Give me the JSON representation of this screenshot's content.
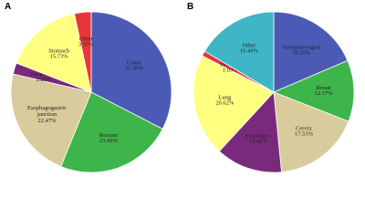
{
  "chart_data": [
    {
      "type": "pie",
      "title": "A",
      "categories": [
        "Colon",
        "Rectum",
        "Esophagogastric junction",
        "Esophagus",
        "Stomach",
        "Other"
      ],
      "values": [
        32.58,
        23.6,
        22.47,
        2.25,
        15.73,
        3.37
      ],
      "value_labels": [
        "32.58%",
        "23.60%",
        "22.47%",
        "2.25%",
        "15.73%",
        "3.37%"
      ],
      "colors": [
        "#4b5bb5",
        "#3db54a",
        "#d8cb9c",
        "#7a2a7c",
        "#ffff80",
        "#e8353b"
      ]
    },
    {
      "type": "pie",
      "title": "B",
      "categories": [
        "Nasopharyngeal",
        "Breast",
        "Cervix",
        "Esophagus",
        "Lung",
        "Stomach",
        "Other"
      ],
      "values": [
        18.56,
        12.37,
        17.53,
        13.4,
        20.62,
        1.03,
        16.49
      ],
      "value_labels": [
        "18.56%",
        "12.37%",
        "17.53%",
        "13.40%",
        "20.62%",
        "1.03%",
        "16.49%"
      ],
      "colors": [
        "#4b5bb5",
        "#3db54a",
        "#d8cb9c",
        "#7a2a7c",
        "#ffff80",
        "#e8353b",
        "#3fb6c6"
      ]
    }
  ]
}
